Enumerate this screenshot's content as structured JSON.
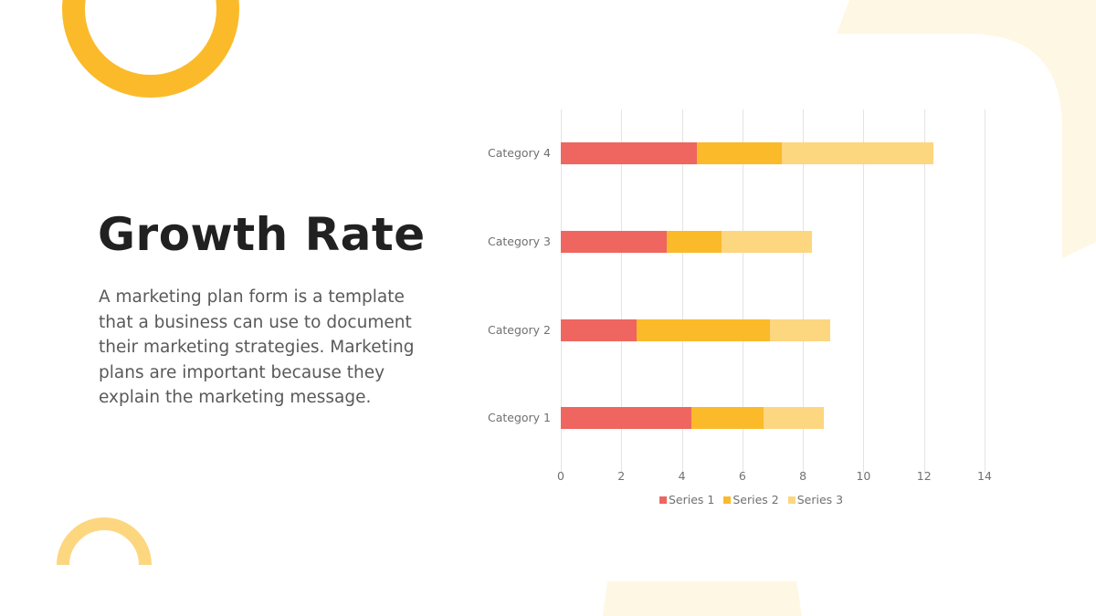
{
  "slide": {
    "title": "Growth Rate",
    "body": "A marketing plan form is a template that a business can use to document their marketing strategies. Marketing plans are important because they explain the marketing message."
  },
  "colors": {
    "series1": "#EE665F",
    "series2": "#FBBA2A",
    "series3": "#FDD680",
    "ring": "#FBBA2A",
    "arc": "#FDD680",
    "cream": "#FEF7E3",
    "title": "#212121",
    "body": "#595959",
    "axis_text": "#707070",
    "grid": "#E4E4E4"
  },
  "chart_data": {
    "type": "bar",
    "orientation": "horizontal",
    "stacked": true,
    "title": "",
    "xlabel": "",
    "ylabel": "",
    "categories": [
      "Category 1",
      "Category 2",
      "Category 3",
      "Category 4"
    ],
    "series": [
      {
        "name": "Series 1",
        "values": [
          4.3,
          2.5,
          3.5,
          4.5
        ]
      },
      {
        "name": "Series 2",
        "values": [
          2.4,
          4.4,
          1.8,
          2.8
        ]
      },
      {
        "name": "Series 3",
        "values": [
          2.0,
          2.0,
          3.0,
          5.0
        ]
      }
    ],
    "xlim": [
      0,
      14
    ],
    "x_ticks": [
      "0",
      "2",
      "4",
      "6",
      "8",
      "10",
      "12",
      "14"
    ],
    "grid": true,
    "legend_position": "bottom",
    "legend": [
      "Series 1",
      "Series 2",
      "Series 3"
    ]
  }
}
